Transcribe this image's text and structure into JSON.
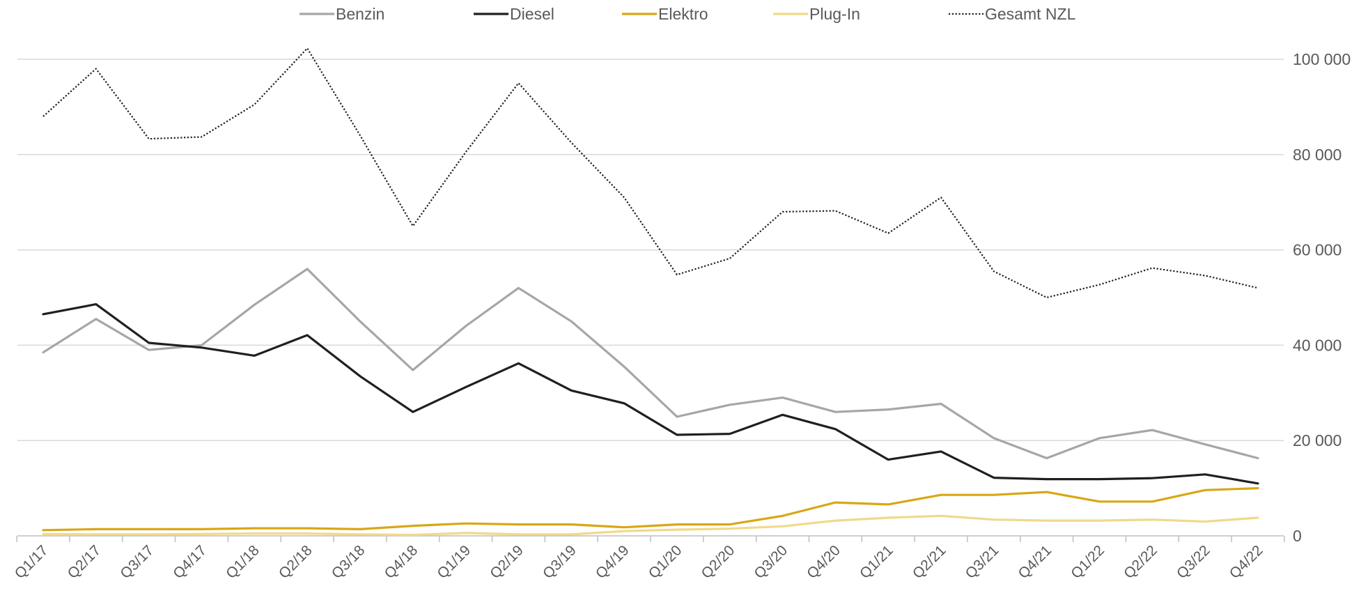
{
  "chart_data": {
    "type": "line",
    "title": "",
    "xlabel": "",
    "ylabel": "",
    "categories": [
      "Q1/17",
      "Q2/17",
      "Q3/17",
      "Q4/17",
      "Q1/18",
      "Q2/18",
      "Q3/18",
      "Q4/18",
      "Q1/19",
      "Q2/19",
      "Q3/19",
      "Q4/19",
      "Q1/20",
      "Q2/20",
      "Q3/20",
      "Q4/20",
      "Q1/21",
      "Q2/21",
      "Q3/21",
      "Q4/21",
      "Q1/22",
      "Q2/22",
      "Q3/22",
      "Q4/22"
    ],
    "ylim": [
      0,
      100000
    ],
    "yticks": [
      0,
      20000,
      40000,
      60000,
      80000,
      100000
    ],
    "ytick_labels": [
      "0",
      "20 000",
      "40 000",
      "60 000",
      "80 000",
      "100 000"
    ],
    "y_axis_side": "right",
    "grid": "horizontal",
    "legend_position": "top",
    "series": [
      {
        "name": "Benzin",
        "color": "#a6a6a6",
        "style": "solid",
        "values": [
          38500,
          45500,
          39000,
          40000,
          48500,
          56000,
          45000,
          34800,
          44000,
          52000,
          45000,
          35500,
          25000,
          27500,
          29000,
          26000,
          26500,
          27700,
          20500,
          16300,
          20500,
          22200,
          19200,
          16300
        ]
      },
      {
        "name": "Diesel",
        "color": "#1f1f1f",
        "style": "solid",
        "values": [
          46500,
          48600,
          40500,
          39500,
          37800,
          42100,
          33500,
          26000,
          31200,
          36200,
          30500,
          27800,
          21200,
          21400,
          25400,
          22400,
          16000,
          17700,
          12200,
          11900,
          11900,
          12100,
          12900,
          11000
        ]
      },
      {
        "name": "Elektro",
        "color": "#d8a715",
        "style": "solid",
        "values": [
          1200,
          1400,
          1400,
          1400,
          1600,
          1600,
          1400,
          2100,
          2600,
          2400,
          2400,
          1800,
          2400,
          2400,
          4200,
          7000,
          6600,
          8600,
          8600,
          9200,
          7200,
          7200,
          9600,
          10000
        ]
      },
      {
        "name": "Plug-In",
        "color": "#f0d98a",
        "style": "solid",
        "values": [
          400,
          300,
          300,
          400,
          500,
          500,
          300,
          200,
          600,
          300,
          300,
          1000,
          1300,
          1500,
          2000,
          3200,
          3800,
          4200,
          3400,
          3200,
          3200,
          3400,
          3000,
          3800
        ]
      },
      {
        "name": "Gesamt NZL",
        "color": "#1f1f1f",
        "style": "dotted",
        "values": [
          88000,
          98000,
          83300,
          83700,
          90500,
          102300,
          84000,
          65000,
          80500,
          95000,
          82500,
          71000,
          54800,
          58200,
          68000,
          68200,
          63500,
          71000,
          55500,
          50000,
          52700,
          56200,
          54600,
          52000
        ]
      }
    ]
  }
}
